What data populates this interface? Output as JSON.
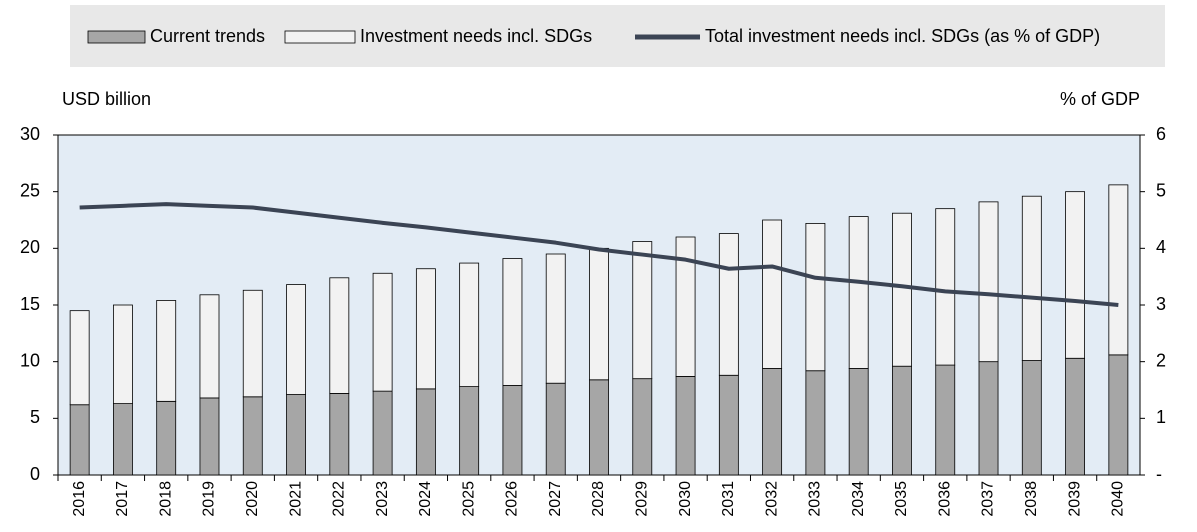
{
  "chart_data": {
    "type": "bar",
    "stacked": true,
    "y_label": "USD billion",
    "y2_label": "% of GDP",
    "categories": [
      "2016",
      "2017",
      "2018",
      "2019",
      "2020",
      "2021",
      "2022",
      "2023",
      "2024",
      "2025",
      "2026",
      "2027",
      "2028",
      "2029",
      "2030",
      "2031",
      "2032",
      "2033",
      "2034",
      "2035",
      "2036",
      "2037",
      "2038",
      "2039",
      "2040"
    ],
    "series": [
      {
        "name": "Current trends",
        "type": "bar",
        "color": "#a6a6a6",
        "values": [
          6.2,
          6.3,
          6.5,
          6.8,
          6.9,
          7.1,
          7.2,
          7.4,
          7.6,
          7.8,
          7.9,
          8.1,
          8.4,
          8.5,
          8.7,
          8.8,
          9.4,
          9.2,
          9.4,
          9.6,
          9.7,
          10.0,
          10.1,
          10.3,
          10.6
        ]
      },
      {
        "name": "Investment needs incl. SDGs",
        "type": "bar",
        "color": "#f2f2f2",
        "values": [
          8.3,
          8.7,
          8.9,
          9.1,
          9.4,
          9.7,
          10.2,
          10.4,
          10.6,
          10.9,
          11.2,
          11.4,
          11.6,
          12.1,
          12.3,
          12.5,
          13.1,
          13.0,
          13.4,
          13.5,
          13.8,
          14.1,
          14.5,
          14.7,
          15.0
        ]
      },
      {
        "name": "Total investment needs incl. SDGs (as % of GDP)",
        "type": "line",
        "axis": "y2",
        "color": "#3b4454",
        "values": [
          4.72,
          4.75,
          4.78,
          4.75,
          4.72,
          4.63,
          4.54,
          4.45,
          4.37,
          4.28,
          4.19,
          4.1,
          3.98,
          3.89,
          3.8,
          3.64,
          3.68,
          3.48,
          3.41,
          3.33,
          3.24,
          3.19,
          3.13,
          3.07,
          3.0
        ]
      }
    ],
    "ylim": [
      0,
      30
    ],
    "yticks": [
      0,
      5,
      10,
      15,
      20,
      25,
      30
    ],
    "y2lim": [
      0,
      6
    ],
    "y2ticks": [
      {
        "value": 0,
        "label": "-"
      },
      1,
      2,
      3,
      4,
      5,
      6
    ],
    "legend": "top",
    "plot_background": "#e3ecf5"
  }
}
